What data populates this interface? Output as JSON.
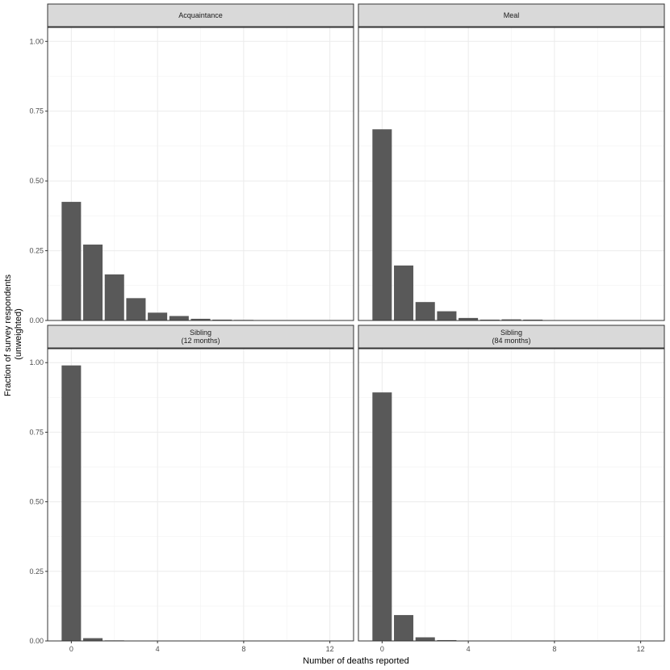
{
  "chart_data": {
    "type": "bar",
    "xlabel": "Number of deaths reported",
    "ylabel_lines": [
      "Fraction of survey respondents",
      "(unweighted)"
    ],
    "ylim": [
      0,
      1.05
    ],
    "xlim": [
      -1.1,
      13.1
    ],
    "y_ticks": [
      0,
      0.25,
      0.5,
      0.75,
      1.0
    ],
    "y_tick_labels": [
      "0.00",
      "0.25",
      "0.50",
      "0.75",
      "1.00"
    ],
    "x_ticks": [
      0,
      4,
      8,
      12
    ],
    "x_tick_labels": [
      "0",
      "4",
      "8",
      "12"
    ],
    "grid": true,
    "bar_color": "#595959",
    "facets": [
      {
        "title_lines": [
          "Acquaintance"
        ],
        "x": [
          0,
          1,
          2,
          3,
          4,
          5,
          6,
          7,
          8,
          9,
          10,
          11,
          12
        ],
        "values": [
          0.425,
          0.272,
          0.165,
          0.08,
          0.028,
          0.016,
          0.006,
          0.003,
          0.002,
          0.001,
          0.001,
          0.0005,
          0.0005
        ]
      },
      {
        "title_lines": [
          "Meal"
        ],
        "x": [
          0,
          1,
          2,
          3,
          4,
          5,
          6,
          7,
          8,
          9,
          10
        ],
        "values": [
          0.685,
          0.197,
          0.066,
          0.033,
          0.009,
          0.003,
          0.004,
          0.003,
          0.001,
          0.001,
          0.0005
        ]
      },
      {
        "title_lines": [
          "Sibling",
          "(12 months)"
        ],
        "x": [
          0,
          1,
          2,
          3
        ],
        "values": [
          0.99,
          0.01,
          0.002,
          0.001
        ]
      },
      {
        "title_lines": [
          "Sibling",
          "(84 months)"
        ],
        "x": [
          0,
          1,
          2,
          3,
          4,
          5
        ],
        "values": [
          0.893,
          0.093,
          0.013,
          0.003,
          0.001,
          0.0005
        ]
      }
    ]
  }
}
